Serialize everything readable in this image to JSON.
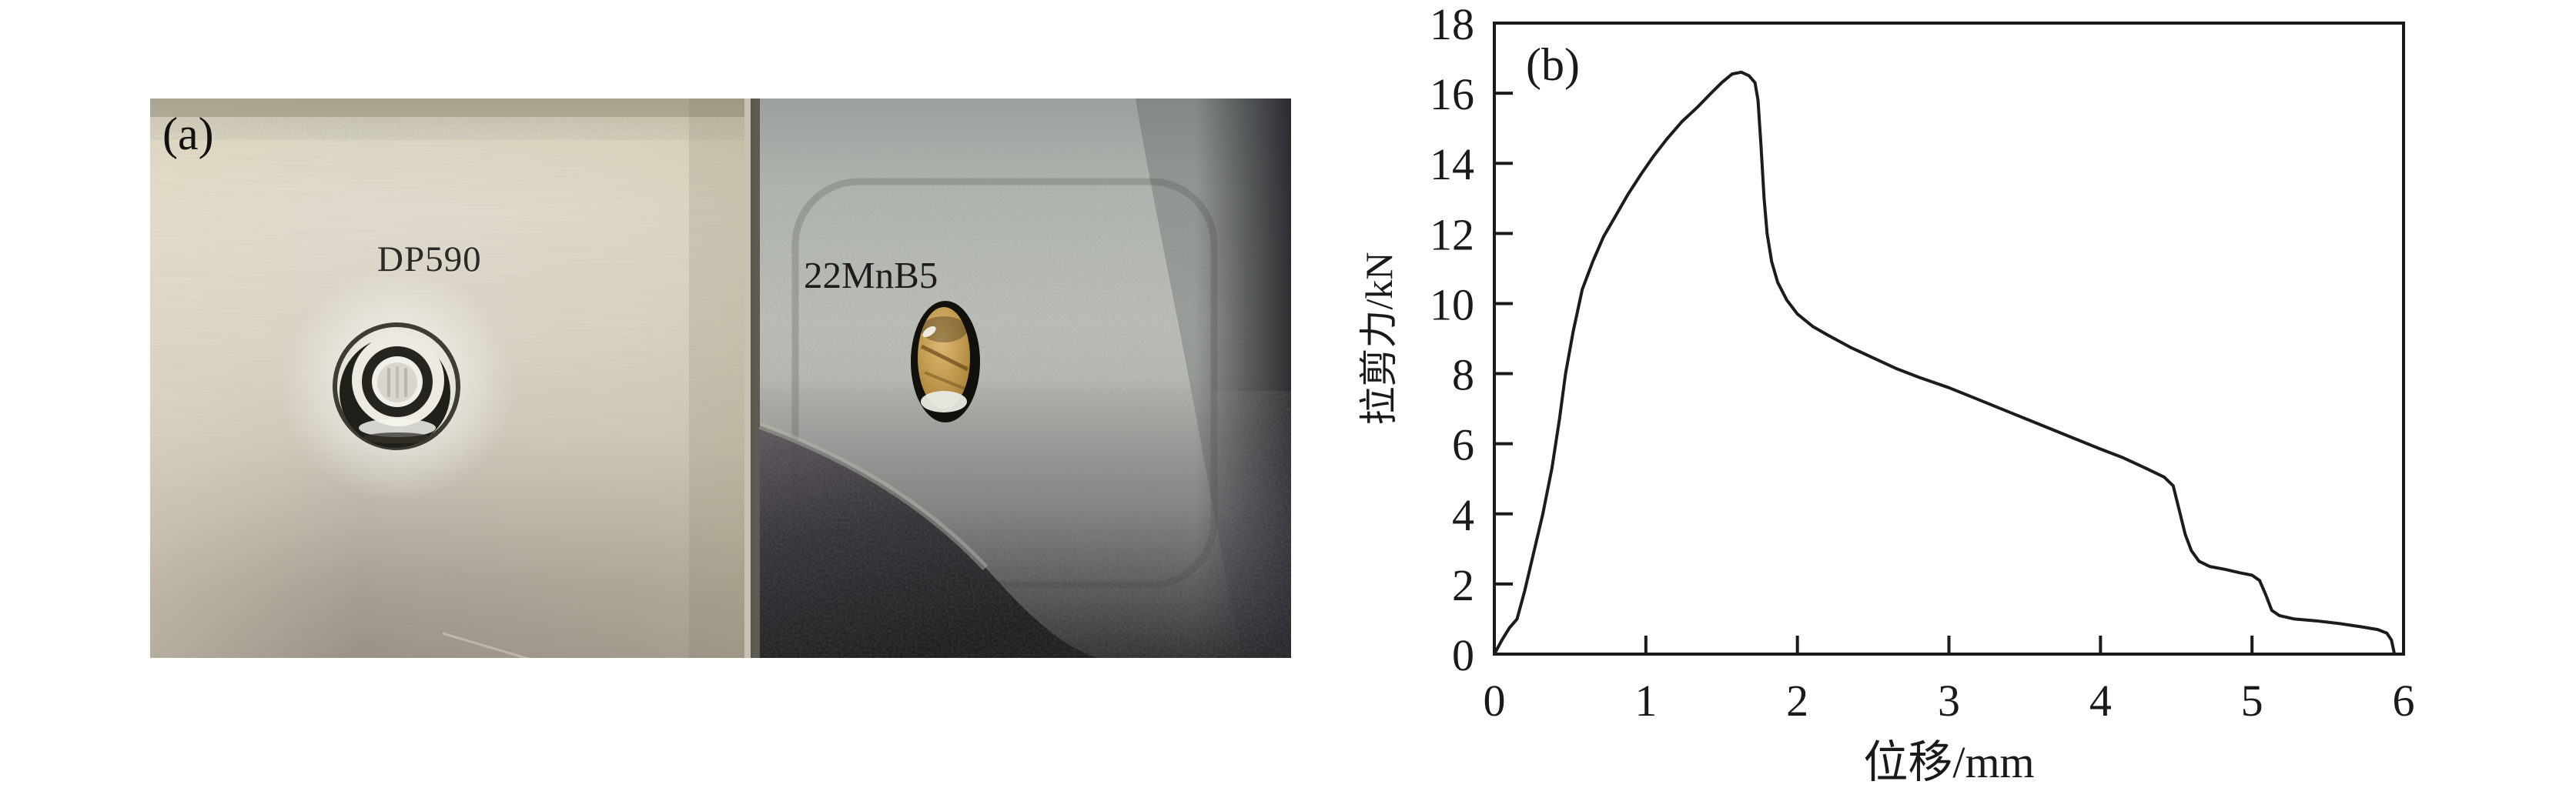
{
  "panel_a": {
    "label": "(a)",
    "materials": {
      "left": "DP590",
      "right": "22MnB5"
    }
  },
  "panel_b": {
    "label": "(b)"
  },
  "chart_data": {
    "type": "line",
    "title": "",
    "xlabel": "位移/mm",
    "ylabel": "拉剪力/kN",
    "xlim": [
      0,
      6
    ],
    "ylim": [
      0,
      18
    ],
    "x_ticks": [
      0,
      1,
      2,
      3,
      4,
      5,
      6
    ],
    "y_ticks": [
      0,
      2,
      4,
      6,
      8,
      10,
      12,
      14,
      16,
      18
    ],
    "grid": false,
    "legend_position": "none",
    "line_color": "#1c1c1c",
    "series": [
      {
        "x": [
          0,
          0.05,
          0.1,
          0.15,
          0.2,
          0.26,
          0.32,
          0.38,
          0.43,
          0.47,
          0.52,
          0.58,
          0.65,
          0.72,
          0.8,
          0.88,
          0.97,
          1.05,
          1.14,
          1.24,
          1.34,
          1.43,
          1.5,
          1.57,
          1.63,
          1.68,
          1.72,
          1.74,
          1.76,
          1.78,
          1.8,
          1.83,
          1.87,
          1.93,
          2.0,
          2.1,
          2.2,
          2.35,
          2.5,
          2.65,
          2.8,
          3.0,
          3.2,
          3.4,
          3.6,
          3.8,
          4.0,
          4.15,
          4.3,
          4.42,
          4.48,
          4.52,
          4.56,
          4.6,
          4.65,
          4.72,
          4.82,
          4.92,
          5.0,
          5.05,
          5.09,
          5.13,
          5.18,
          5.28,
          5.42,
          5.58,
          5.72,
          5.83,
          5.89,
          5.92,
          5.94
        ],
        "y": [
          0,
          0.4,
          0.75,
          1.0,
          1.8,
          2.9,
          4.0,
          5.3,
          6.7,
          8.0,
          9.2,
          10.4,
          11.2,
          11.9,
          12.5,
          13.1,
          13.7,
          14.2,
          14.7,
          15.2,
          15.6,
          16.0,
          16.3,
          16.55,
          16.6,
          16.5,
          16.3,
          15.8,
          14.5,
          13.0,
          12.0,
          11.2,
          10.6,
          10.1,
          9.7,
          9.35,
          9.1,
          8.75,
          8.45,
          8.15,
          7.9,
          7.6,
          7.25,
          6.9,
          6.55,
          6.2,
          5.85,
          5.6,
          5.3,
          5.05,
          4.8,
          4.1,
          3.4,
          2.95,
          2.65,
          2.5,
          2.42,
          2.32,
          2.25,
          2.1,
          1.7,
          1.25,
          1.1,
          1.0,
          0.95,
          0.87,
          0.78,
          0.7,
          0.6,
          0.4,
          0
        ]
      }
    ]
  },
  "colors": {
    "background": "#ffffff",
    "axis": "#1a1a1a",
    "text": "#151515",
    "left_plate_light": "#ded9cb",
    "left_plate_dark": "#8e867d",
    "right_plate_silver": "#b8bcb4",
    "right_plate_dark": "#232226",
    "hole_brass": "#c09a4e",
    "rivet_ring_dark": "#20201b",
    "rivet_ring_bright": "#eceae3"
  }
}
